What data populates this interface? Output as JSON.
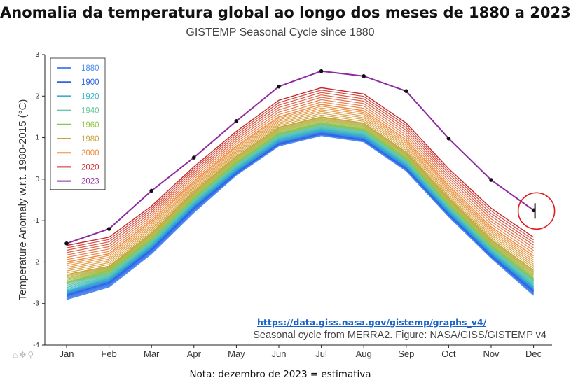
{
  "header": {
    "title": "Anomalia da temperatura global ao longo dos meses de 1880 a 2023",
    "subtitle": "GISTEMP Seasonal Cycle since 1880"
  },
  "footer": {
    "link": "https://data.giss.nasa.gov/gistemp/graphs_v4/",
    "credit": "Seasonal cycle from MERRA2. Figure: NASA/GISS/GISTEMP v4",
    "note": "Nota: dezembro de 2023 = estimativa"
  },
  "toolbar": {
    "icons": [
      "home-icon",
      "pan-icon",
      "zoom-icon"
    ]
  },
  "chart_data": {
    "type": "line",
    "ylabel": "Temperature Anomaly w.r.t. 1980-2015 (°C)",
    "xlabel": "",
    "categories": [
      "Jan",
      "Feb",
      "Mar",
      "Apr",
      "May",
      "Jun",
      "Jul",
      "Aug",
      "Sep",
      "Oct",
      "Nov",
      "Dec"
    ],
    "ylim": [
      -4,
      3
    ],
    "yticks": [
      "-4",
      "-3",
      "-2",
      "-1",
      "0",
      "1",
      "2",
      "3"
    ],
    "grid": false,
    "legend_position": "top-left",
    "legend": [
      {
        "label": "1880",
        "color": "#4f8ef0"
      },
      {
        "label": "1900",
        "color": "#2f63e6"
      },
      {
        "label": "1920",
        "color": "#33b6cc"
      },
      {
        "label": "1940",
        "color": "#6cc7a0"
      },
      {
        "label": "1960",
        "color": "#92c44a"
      },
      {
        "label": "1980",
        "color": "#c9a43a"
      },
      {
        "label": "2000",
        "color": "#f08a3c"
      },
      {
        "label": "2020",
        "color": "#c8282b"
      },
      {
        "label": "2023",
        "color": "#8e2aa2"
      }
    ],
    "band_series": [
      {
        "name": "1880",
        "values": [
          -2.9,
          -2.6,
          -1.8,
          -0.8,
          0.1,
          0.8,
          1.05,
          0.9,
          0.2,
          -0.9,
          -1.9,
          -2.8
        ]
      },
      {
        "name": "1900",
        "values": [
          -2.8,
          -2.5,
          -1.7,
          -0.7,
          0.15,
          0.85,
          1.1,
          0.95,
          0.25,
          -0.85,
          -1.85,
          -2.7
        ]
      },
      {
        "name": "1920",
        "values": [
          -2.7,
          -2.4,
          -1.6,
          -0.6,
          0.25,
          0.95,
          1.2,
          1.05,
          0.35,
          -0.75,
          -1.75,
          -2.6
        ]
      },
      {
        "name": "1940",
        "values": [
          -2.5,
          -2.3,
          -1.5,
          -0.5,
          0.35,
          1.05,
          1.3,
          1.15,
          0.45,
          -0.65,
          -1.65,
          -2.45
        ]
      },
      {
        "name": "1960",
        "values": [
          -2.5,
          -2.2,
          -1.45,
          -0.45,
          0.4,
          1.1,
          1.35,
          1.2,
          0.5,
          -0.6,
          -1.6,
          -2.4
        ]
      },
      {
        "name": "1980",
        "values": [
          -2.3,
          -2.1,
          -1.3,
          -0.3,
          0.55,
          1.25,
          1.5,
          1.35,
          0.65,
          -0.45,
          -1.45,
          -2.2
        ]
      },
      {
        "name": "2000",
        "values": [
          -2.0,
          -1.8,
          -1.0,
          -0.05,
          0.8,
          1.5,
          1.8,
          1.65,
          0.95,
          -0.15,
          -1.15,
          -1.85
        ]
      },
      {
        "name": "2020",
        "values": [
          -1.6,
          -1.4,
          -0.65,
          0.3,
          1.15,
          1.9,
          2.2,
          2.05,
          1.35,
          0.25,
          -0.7,
          -1.4
        ]
      }
    ],
    "series": [
      {
        "name": "2023",
        "color": "#8e2aa2",
        "values": [
          -1.55,
          -1.2,
          -0.28,
          0.52,
          1.4,
          2.23,
          2.6,
          2.48,
          2.12,
          0.98,
          -0.02,
          -0.75
        ]
      }
    ]
  }
}
